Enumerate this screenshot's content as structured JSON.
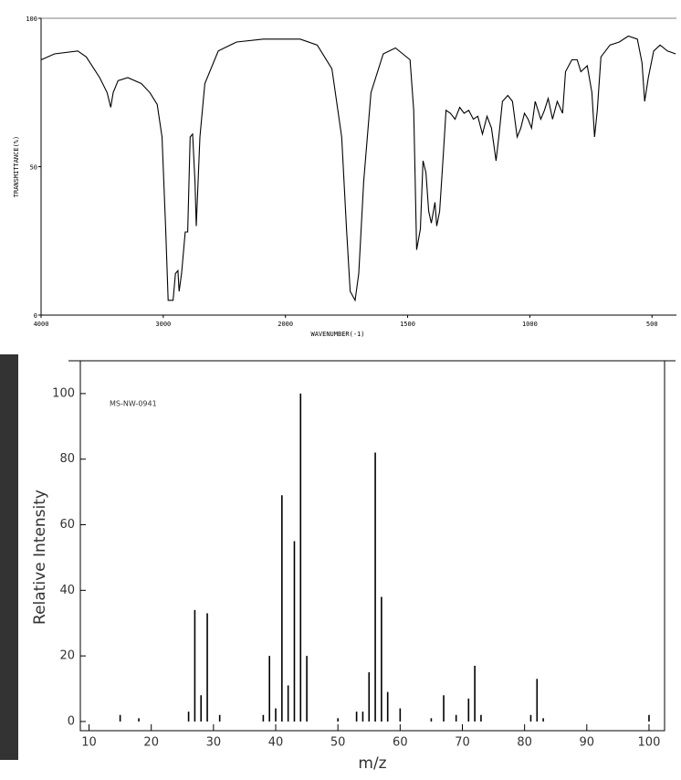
{
  "chart_data": [
    {
      "type": "line",
      "ylabel": "TRANSMITTANCE(%)",
      "xlabel": "WAVENUMBER(-1)",
      "x": [
        4000,
        3890,
        3700,
        3630,
        3520,
        3460,
        3430,
        3410,
        3370,
        3290,
        3180,
        3110,
        3050,
        3010,
        2980,
        2960,
        2920,
        2900,
        2880,
        2870,
        2850,
        2820,
        2800,
        2780,
        2760,
        2740,
        2730,
        2700,
        2660,
        2550,
        2400,
        2180,
        2030,
        1940,
        1870,
        1810,
        1770,
        1750,
        1735,
        1715,
        1700,
        1680,
        1650,
        1600,
        1550,
        1490,
        1475,
        1463,
        1448,
        1437,
        1425,
        1414,
        1403,
        1388,
        1381,
        1369,
        1354,
        1343,
        1325,
        1306,
        1287,
        1269,
        1250,
        1231,
        1213,
        1194,
        1175,
        1157,
        1138,
        1127,
        1112,
        1090,
        1071,
        1052,
        1037,
        1022,
        1007,
        993,
        978,
        955,
        940,
        925,
        907,
        888,
        866,
        854,
        828,
        806,
        791,
        765,
        746,
        735,
        724,
        709,
        672,
        634,
        597,
        560,
        541,
        530,
        515,
        493,
        467,
        437,
        403
      ],
      "values": [
        86,
        88,
        89,
        87,
        80,
        75,
        70,
        75,
        79,
        80,
        78,
        75,
        71,
        60,
        29,
        5,
        5,
        14,
        15,
        8,
        14,
        28,
        28,
        60,
        61,
        45,
        30,
        60,
        78,
        89,
        92,
        93,
        93,
        93,
        91,
        83,
        60,
        29,
        8,
        5,
        14,
        45,
        75,
        88,
        90,
        86,
        69,
        22,
        29,
        52,
        48,
        35,
        31,
        38,
        30,
        35,
        54,
        69,
        68,
        66,
        70,
        68,
        69,
        66,
        67,
        61,
        67,
        63,
        52,
        60,
        72,
        74,
        72,
        60,
        63,
        68,
        66,
        63,
        72,
        66,
        69,
        73,
        66,
        72,
        68,
        82,
        86,
        86,
        82,
        84,
        75,
        60,
        69,
        87,
        91,
        92,
        94,
        93,
        85,
        72,
        80,
        89,
        91,
        89,
        88
      ],
      "color": "#000000",
      "xlim": [
        4000,
        400
      ],
      "xticks": [
        4000,
        3000,
        2000,
        1500,
        1000,
        500
      ],
      "xbreak": 2000,
      "ylim": [
        0,
        100
      ],
      "yticks": [
        0,
        50,
        100
      ]
    },
    {
      "type": "bar",
      "annotation": "MS-NW-0941",
      "ylabel": "Relative Intensity",
      "xlabel": "m/z",
      "x": [
        15,
        18,
        26,
        27,
        28,
        29,
        31,
        38,
        39,
        40,
        41,
        42,
        43,
        44,
        45,
        50,
        53,
        54,
        55,
        56,
        57,
        58,
        60,
        65,
        67,
        69,
        71,
        72,
        73,
        81,
        82,
        83,
        100
      ],
      "values": [
        2,
        1,
        3,
        34,
        8,
        33,
        2,
        2,
        20,
        4,
        69,
        11,
        55,
        100,
        20,
        1,
        3,
        3,
        15,
        82,
        38,
        9,
        4,
        1,
        8,
        2,
        7,
        17,
        2,
        2,
        13,
        1,
        2
      ],
      "color": "#000000",
      "xlim": [
        8.6,
        102.5
      ],
      "xticks": [
        10,
        20,
        30,
        40,
        50,
        60,
        70,
        80,
        90,
        100
      ],
      "ylim": [
        -2.8,
        110
      ],
      "yticks": [
        0,
        20,
        40,
        60,
        80,
        100
      ]
    }
  ]
}
